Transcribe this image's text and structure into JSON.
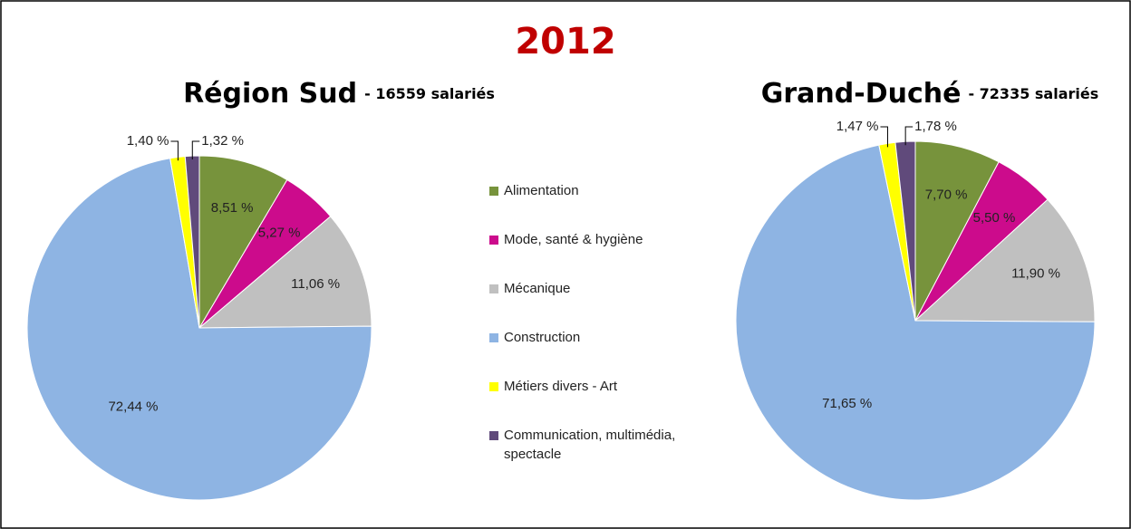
{
  "title": "2012",
  "categories": [
    "Alimentation",
    "Mode, santé & hygiène",
    "Mécanique",
    "Construction",
    "Métiers divers - Art",
    "Communication, multimédia, spectacle"
  ],
  "colors": [
    "#77933c",
    "#cc0b8c",
    "#c0c0c0",
    "#8eb4e3",
    "#ffff00",
    "#604a7b"
  ],
  "chart_data": [
    {
      "type": "pie",
      "title": "Région Sud",
      "subtitle": "- 16559 salariés",
      "values": [
        8.51,
        5.27,
        11.06,
        72.44,
        1.4,
        1.32
      ],
      "value_labels": [
        "8,51 %",
        "5,27 %",
        "11,06 %",
        "72,44 %",
        "1,40 %",
        "1,32 %"
      ]
    },
    {
      "type": "pie",
      "title": "Grand-Duché",
      "subtitle": "- 72335 salariés",
      "values": [
        7.7,
        5.5,
        11.9,
        71.65,
        1.47,
        1.78
      ],
      "value_labels": [
        "7,70 %",
        "5,50 %",
        "11,90 %",
        "71,65 %",
        "1,47 %",
        "1,78 %"
      ]
    }
  ]
}
